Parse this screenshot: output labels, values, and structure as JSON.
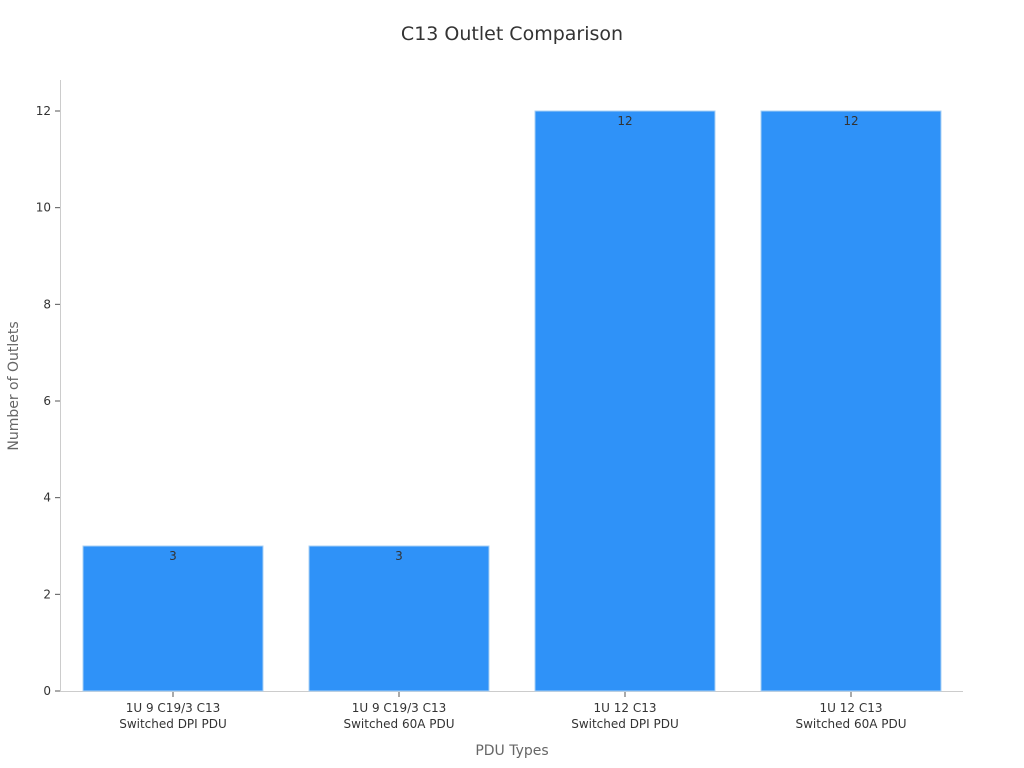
{
  "chart_data": {
    "type": "bar",
    "title": "C13 Outlet Comparison",
    "xlabel": "PDU Types",
    "ylabel": "Number of Outlets",
    "categories": [
      [
        "1U 9 C19/3 C13",
        "Switched DPI PDU"
      ],
      [
        "1U 9 C19/3 C13",
        "Switched 60A PDU"
      ],
      [
        "1U 12 C13",
        "Switched DPI PDU"
      ],
      [
        "1U 12 C13",
        "Switched 60A PDU"
      ]
    ],
    "values": [
      3,
      3,
      12,
      12
    ],
    "data_labels": [
      "3",
      "3",
      "12",
      "12"
    ],
    "yticks": [
      0,
      2,
      4,
      6,
      8,
      10,
      12
    ],
    "ylim": [
      0,
      12.6
    ],
    "grid": false,
    "bar_color": "#2f92f8",
    "bar_edge_color": "#a9d0f5"
  }
}
